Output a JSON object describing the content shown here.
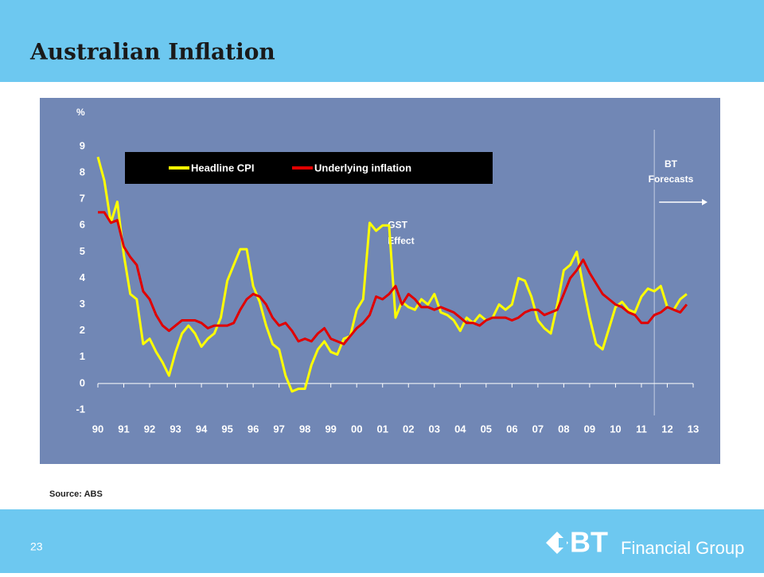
{
  "chart_data": {
    "type": "line",
    "title": "Australian Inflation",
    "y_axis_label": "%",
    "source": "Source: ABS",
    "page_number": "23",
    "logo_mark": "BT",
    "logo_text": "Financial Group",
    "annotations": [
      {
        "text": "GST",
        "x": 2001.2,
        "y": 6.0
      },
      {
        "text": "Effect",
        "x": 2001.2,
        "y": 5.4
      }
    ],
    "forecast": {
      "lines": [
        "BT",
        "Forecasts"
      ],
      "x": 2011.5
    },
    "legend": "top-left",
    "xlim": [
      1990,
      2013
    ],
    "xticks": [
      {
        "value": 1990,
        "label": "90"
      },
      {
        "value": 1991,
        "label": "91"
      },
      {
        "value": 1992,
        "label": "92"
      },
      {
        "value": 1993,
        "label": "93"
      },
      {
        "value": 1994,
        "label": "94"
      },
      {
        "value": 1995,
        "label": "95"
      },
      {
        "value": 1996,
        "label": "96"
      },
      {
        "value": 1997,
        "label": "97"
      },
      {
        "value": 1998,
        "label": "98"
      },
      {
        "value": 1999,
        "label": "99"
      },
      {
        "value": 2000,
        "label": "00"
      },
      {
        "value": 2001,
        "label": "01"
      },
      {
        "value": 2002,
        "label": "02"
      },
      {
        "value": 2003,
        "label": "03"
      },
      {
        "value": 2004,
        "label": "04"
      },
      {
        "value": 2005,
        "label": "05"
      },
      {
        "value": 2006,
        "label": "06"
      },
      {
        "value": 2007,
        "label": "07"
      },
      {
        "value": 2008,
        "label": "08"
      },
      {
        "value": 2009,
        "label": "09"
      },
      {
        "value": 2010,
        "label": "10"
      },
      {
        "value": 2011,
        "label": "11"
      },
      {
        "value": 2012,
        "label": "12"
      },
      {
        "value": 2013,
        "label": "13"
      }
    ],
    "ylim": [
      -1,
      9
    ],
    "yticks": [
      -1,
      0,
      1,
      2,
      3,
      4,
      5,
      6,
      7,
      8,
      9
    ],
    "x": [
      1990,
      1990.25,
      1990.5,
      1990.75,
      1991,
      1991.25,
      1991.5,
      1991.75,
      1992,
      1992.25,
      1992.5,
      1992.75,
      1993,
      1993.25,
      1993.5,
      1993.75,
      1994,
      1994.25,
      1994.5,
      1994.75,
      1995,
      1995.25,
      1995.5,
      1995.75,
      1996,
      1996.25,
      1996.5,
      1996.75,
      1997,
      1997.25,
      1997.5,
      1997.75,
      1998,
      1998.25,
      1998.5,
      1998.75,
      1999,
      1999.25,
      1999.5,
      1999.75,
      2000,
      2000.25,
      2000.5,
      2000.75,
      2001,
      2001.25,
      2001.5,
      2001.75,
      2002,
      2002.25,
      2002.5,
      2002.75,
      2003,
      2003.25,
      2003.5,
      2003.75,
      2004,
      2004.25,
      2004.5,
      2004.75,
      2005,
      2005.25,
      2005.5,
      2005.75,
      2006,
      2006.25,
      2006.5,
      2006.75,
      2007,
      2007.25,
      2007.5,
      2007.75,
      2008,
      2008.25,
      2008.5,
      2008.75,
      2009,
      2009.25,
      2009.5,
      2009.75,
      2010,
      2010.25,
      2010.5,
      2010.75,
      2011,
      2011.25,
      2011.5,
      2011.75,
      2012,
      2012.25,
      2012.5,
      2012.75
    ],
    "series": [
      {
        "name": "Headline CPI",
        "color": "#ffff00",
        "values": [
          8.6,
          7.7,
          6.1,
          6.9,
          4.9,
          3.4,
          3.2,
          1.5,
          1.7,
          1.2,
          0.8,
          0.3,
          1.2,
          1.9,
          2.2,
          1.9,
          1.4,
          1.7,
          1.9,
          2.5,
          3.9,
          4.5,
          5.1,
          5.1,
          3.7,
          3.1,
          2.2,
          1.5,
          1.3,
          0.3,
          -0.3,
          -0.2,
          -0.2,
          0.7,
          1.3,
          1.6,
          1.2,
          1.1,
          1.7,
          1.8,
          2.8,
          3.2,
          6.1,
          5.8,
          6.0,
          6.0,
          2.5,
          3.1,
          2.9,
          2.8,
          3.2,
          3.0,
          3.4,
          2.7,
          2.6,
          2.4,
          2.0,
          2.5,
          2.3,
          2.6,
          2.4,
          2.5,
          3.0,
          2.8,
          3.0,
          4.0,
          3.9,
          3.3,
          2.4,
          2.1,
          1.9,
          3.0,
          4.3,
          4.5,
          5.0,
          3.7,
          2.5,
          1.5,
          1.3,
          2.1,
          2.9,
          3.1,
          2.8,
          2.7,
          3.3,
          3.6,
          3.5,
          3.7,
          2.9,
          2.8,
          3.2,
          3.4
        ]
      },
      {
        "name": "Underlying inflation",
        "color": "#e00000",
        "values": [
          6.5,
          6.5,
          6.1,
          6.2,
          5.2,
          4.8,
          4.5,
          3.5,
          3.2,
          2.6,
          2.2,
          2.0,
          2.2,
          2.4,
          2.4,
          2.4,
          2.3,
          2.1,
          2.2,
          2.2,
          2.2,
          2.3,
          2.8,
          3.2,
          3.4,
          3.3,
          3.0,
          2.5,
          2.2,
          2.3,
          2.0,
          1.6,
          1.7,
          1.6,
          1.9,
          2.1,
          1.7,
          1.6,
          1.5,
          1.8,
          2.1,
          2.3,
          2.6,
          3.3,
          3.2,
          3.4,
          3.7,
          3.0,
          3.4,
          3.2,
          2.9,
          2.9,
          2.8,
          2.9,
          2.8,
          2.7,
          2.5,
          2.3,
          2.3,
          2.2,
          2.4,
          2.5,
          2.5,
          2.5,
          2.4,
          2.5,
          2.7,
          2.8,
          2.8,
          2.6,
          2.7,
          2.8,
          3.4,
          4.0,
          4.3,
          4.7,
          4.2,
          3.8,
          3.4,
          3.2,
          3.0,
          2.9,
          2.7,
          2.6,
          2.3,
          2.3,
          2.6,
          2.7,
          2.9,
          2.8,
          2.7,
          3.0
        ]
      }
    ]
  }
}
